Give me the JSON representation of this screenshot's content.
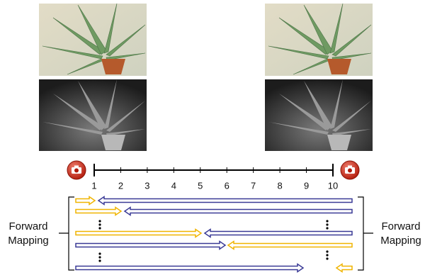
{
  "axis": {
    "ticks": [
      1,
      2,
      3,
      4,
      5,
      6,
      7,
      8,
      9,
      10
    ]
  },
  "left_label": {
    "lines": [
      "Forward",
      "Mapping"
    ]
  },
  "right_label": {
    "lines": [
      "Forward",
      "Mapping"
    ]
  }
}
